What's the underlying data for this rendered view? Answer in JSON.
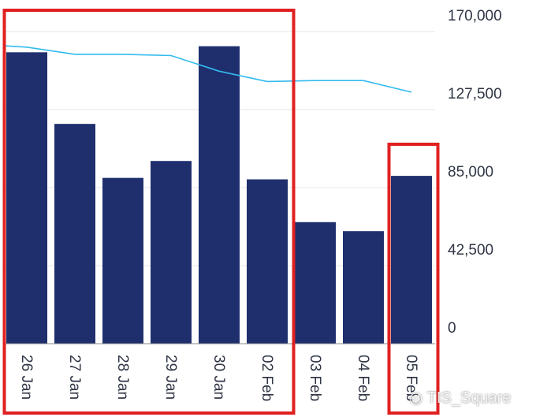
{
  "chart_data": {
    "type": "bar",
    "categories": [
      "26 Jan",
      "27 Jan",
      "28 Jan",
      "29 Jan",
      "30 Jan",
      "02 Feb",
      "03 Feb",
      "04 Feb",
      "05 Feb"
    ],
    "series": [
      {
        "values": [
          158700,
          119700,
          90300,
          99500,
          162000,
          89500,
          66200,
          61300,
          91400
        ]
      },
      {
        "type": "line",
        "values": [
          161500,
          157600,
          157600,
          156900,
          148400,
          142800,
          143300,
          143300,
          137000
        ]
      }
    ],
    "yticks": [
      "170,000",
      "127,500",
      "85,000",
      "42,500",
      "0"
    ],
    "ylim": [
      0,
      170000
    ],
    "y_axis_side": "right",
    "grid": true,
    "colors": {
      "bar": "#1f2f6e",
      "line": "#33bbee",
      "grid": "#e4e4e4",
      "highlight_box": "#e02020"
    },
    "highlight_boxes": [
      {
        "covers": [
          "26 Jan",
          "02 Feb"
        ]
      },
      {
        "covers": [
          "05 Feb",
          "05 Feb"
        ]
      }
    ]
  },
  "watermark": {
    "icon": "wechat-icon",
    "text": "TIS_Square"
  }
}
